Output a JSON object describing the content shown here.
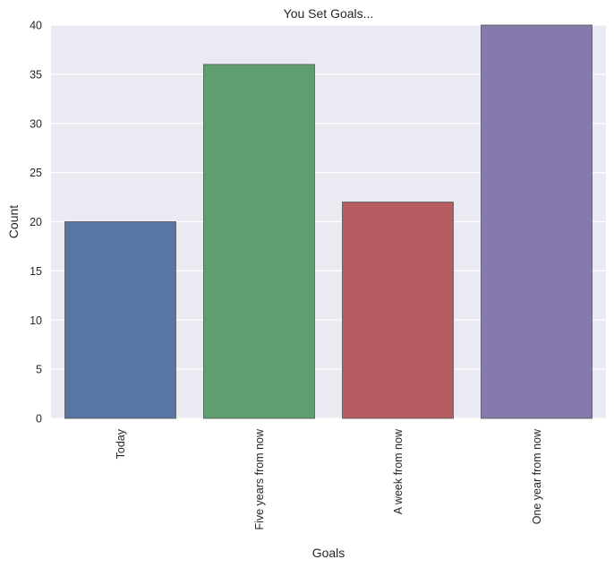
{
  "chart_data": {
    "type": "bar",
    "title": "You Set Goals...",
    "xlabel": "Goals",
    "ylabel": "Count",
    "categories": [
      "Today",
      "Five years from now",
      "A week from now",
      "One year from now"
    ],
    "values": [
      20,
      36,
      22,
      40
    ],
    "colors": [
      "#5875a4",
      "#5f9e6e",
      "#b55d60",
      "#857aab"
    ],
    "ylim": [
      0,
      40
    ],
    "yticks": [
      0,
      5,
      10,
      15,
      20,
      25,
      30,
      35,
      40
    ],
    "grid": true,
    "background": "#eaeaf2"
  }
}
